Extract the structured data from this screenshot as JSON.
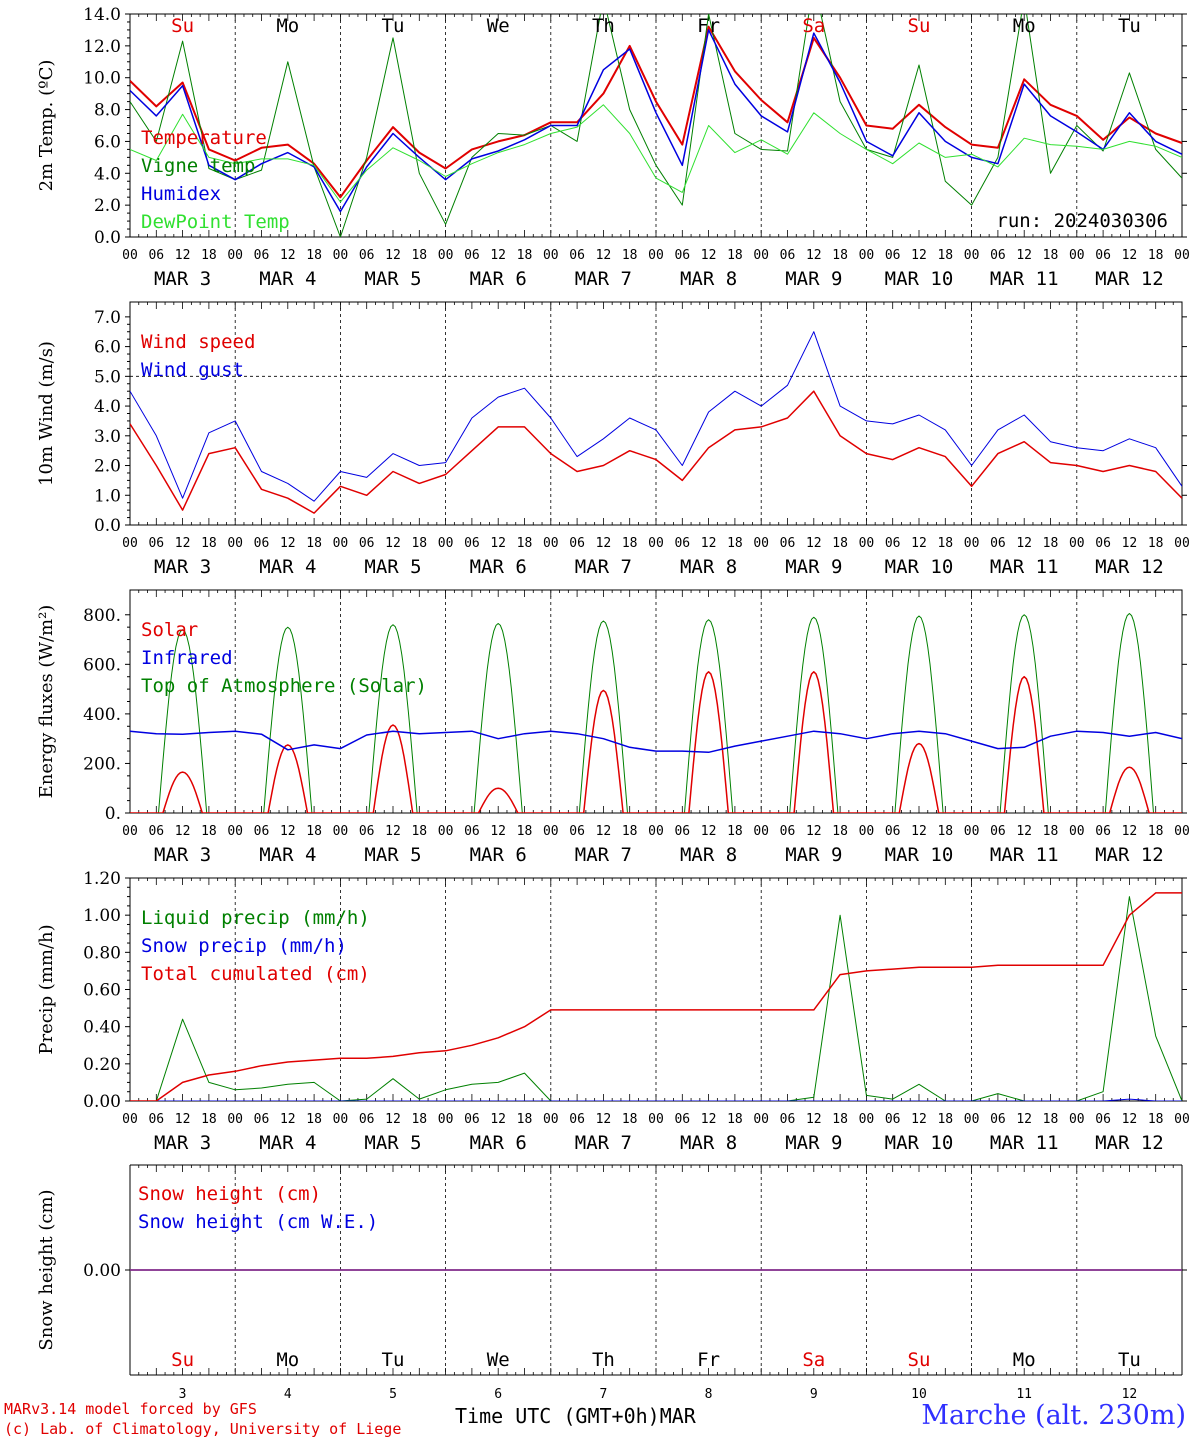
{
  "footer": {
    "model": "MARv3.14 model forced by GFS",
    "lab": "(c) Lab. of Climatology, University of Liege",
    "xlabel": "Time UTC (GMT+0h)",
    "month": "MAR",
    "station": "Marche (alt. 230m)"
  },
  "time_axis": {
    "hour_labels": [
      "00",
      "06",
      "12",
      "18"
    ],
    "dates": [
      "MAR  3",
      "MAR  4",
      "MAR  5",
      "MAR  6",
      "MAR  7",
      "MAR  8",
      "MAR  9",
      "MAR 10",
      "MAR 11",
      "MAR 12"
    ],
    "day_numbers": [
      "3",
      "4",
      "5",
      "6",
      "7",
      "8",
      "9",
      "10",
      "11",
      "12"
    ],
    "days": [
      "Su",
      "Mo",
      "Tu",
      "We",
      "Th",
      "Fr",
      "Sa",
      "Su",
      "Mo",
      "Tu"
    ],
    "weekend_days": [
      0,
      6,
      7
    ],
    "colors": {
      "weekend": "#e00000",
      "weekday": "#000000"
    }
  },
  "chart_data": [
    {
      "id": "temp",
      "type": "line",
      "ylabel": "2m Temp. (ºC)",
      "ylim": [
        0,
        14
      ],
      "yticks": [
        0,
        2,
        4,
        6,
        8,
        10,
        12,
        14
      ],
      "ytick_labels": [
        "0.0",
        "2.0",
        "4.0",
        "6.0",
        "8.0",
        "10.0",
        "12.0",
        "14.0"
      ],
      "annotation": "run: 2024030306",
      "x_hours": [
        0,
        6,
        12,
        18,
        24,
        30,
        36,
        42,
        48,
        54,
        60,
        66,
        72,
        78,
        84,
        90,
        96,
        102,
        108,
        114,
        120,
        126,
        132,
        138,
        144,
        150,
        156,
        162,
        168,
        174,
        180,
        186,
        192,
        198,
        204,
        210,
        216,
        222,
        228,
        234,
        240
      ],
      "series": [
        {
          "name": "Temperature",
          "color": "#e00000",
          "width": 2,
          "values": [
            9.8,
            8.2,
            9.7,
            5.5,
            4.8,
            5.6,
            5.8,
            4.6,
            2.5,
            4.8,
            6.9,
            5.3,
            4.3,
            5.5,
            6.0,
            6.4,
            7.2,
            7.2,
            9.0,
            12.0,
            8.5,
            5.8,
            13.2,
            10.4,
            8.6,
            7.2,
            12.5,
            10.0,
            7.0,
            6.8,
            8.3,
            6.9,
            5.8,
            5.6,
            9.9,
            8.3,
            7.6,
            6.1,
            7.5,
            6.5,
            5.9
          ]
        },
        {
          "name": "Vigne temp",
          "color": "#008000",
          "width": 1,
          "values": [
            8.5,
            6.0,
            12.3,
            4.3,
            3.6,
            4.2,
            11.0,
            4.4,
            0.0,
            5.0,
            12.5,
            4.0,
            0.8,
            5.0,
            6.5,
            6.4,
            7.0,
            6.0,
            15.0,
            8.0,
            4.5,
            2.0,
            14.0,
            6.5,
            5.5,
            5.4,
            16.0,
            8.5,
            5.5,
            5.0,
            10.8,
            3.5,
            2.0,
            5.0,
            15.0,
            4.0,
            7.0,
            5.4,
            10.3,
            5.5,
            3.7
          ]
        },
        {
          "name": "Humidex",
          "color": "#0000e0",
          "width": 1.5,
          "values": [
            9.2,
            7.6,
            9.5,
            4.5,
            3.6,
            4.6,
            5.3,
            4.4,
            1.6,
            4.4,
            6.5,
            5.0,
            3.6,
            4.9,
            5.4,
            6.1,
            7.0,
            7.0,
            10.5,
            11.8,
            7.8,
            4.5,
            13.0,
            9.6,
            7.6,
            6.6,
            12.8,
            9.7,
            6.0,
            5.1,
            7.8,
            6.0,
            5.0,
            4.6,
            9.6,
            7.6,
            6.6,
            5.5,
            7.8,
            6.0,
            5.2
          ]
        },
        {
          "name": "DewPoint Temp",
          "color": "#30e030",
          "width": 1,
          "values": [
            5.5,
            4.8,
            7.7,
            5.0,
            4.6,
            4.9,
            4.9,
            4.5,
            2.2,
            4.2,
            5.6,
            4.8,
            3.8,
            4.6,
            5.3,
            5.8,
            6.5,
            6.9,
            8.3,
            6.5,
            3.7,
            2.8,
            7.0,
            5.3,
            6.1,
            5.2,
            7.8,
            6.5,
            5.5,
            4.6,
            5.9,
            5.0,
            5.2,
            4.4,
            6.2,
            5.8,
            5.7,
            5.5,
            6.0,
            5.7,
            5.0
          ]
        }
      ]
    },
    {
      "id": "wind",
      "type": "line",
      "ylabel": "10m Wind (m/s)",
      "ylim": [
        0,
        7.5
      ],
      "yticks": [
        0,
        1,
        2,
        3,
        4,
        5,
        6,
        7
      ],
      "ytick_labels": [
        "0.0",
        "1.0",
        "2.0",
        "3.0",
        "4.0",
        "5.0",
        "6.0",
        "7.0"
      ],
      "ref_line": 5.0,
      "x_hours": [
        0,
        6,
        12,
        18,
        24,
        30,
        36,
        42,
        48,
        54,
        60,
        66,
        72,
        78,
        84,
        90,
        96,
        102,
        108,
        114,
        120,
        126,
        132,
        138,
        144,
        150,
        156,
        162,
        168,
        174,
        180,
        186,
        192,
        198,
        204,
        210,
        216,
        222,
        228,
        234,
        240
      ],
      "series": [
        {
          "name": "Wind speed",
          "color": "#e00000",
          "width": 1.5,
          "values": [
            3.4,
            2.0,
            0.5,
            2.4,
            2.6,
            1.2,
            0.9,
            0.4,
            1.3,
            1.0,
            1.8,
            1.4,
            1.7,
            2.5,
            3.3,
            3.3,
            2.4,
            1.8,
            2.0,
            2.5,
            2.2,
            1.5,
            2.6,
            3.2,
            3.3,
            3.6,
            4.5,
            3.0,
            2.4,
            2.2,
            2.6,
            2.3,
            1.3,
            2.4,
            2.8,
            2.1,
            2.0,
            1.8,
            2.0,
            1.8,
            0.9
          ]
        },
        {
          "name": "Wind gust",
          "color": "#0000e0",
          "width": 1,
          "values": [
            4.5,
            3.0,
            0.9,
            3.1,
            3.5,
            1.8,
            1.4,
            0.8,
            1.8,
            1.6,
            2.4,
            2.0,
            2.1,
            3.6,
            4.3,
            4.6,
            3.6,
            2.3,
            2.9,
            3.6,
            3.2,
            2.0,
            3.8,
            4.5,
            4.0,
            4.7,
            6.5,
            4.0,
            3.5,
            3.4,
            3.7,
            3.2,
            2.0,
            3.2,
            3.7,
            2.8,
            2.6,
            2.5,
            2.9,
            2.6,
            1.3
          ]
        }
      ]
    },
    {
      "id": "energy",
      "type": "line",
      "ylabel": "Energy fluxes (W/m²)",
      "ylim": [
        0,
        900
      ],
      "yticks": [
        0,
        200,
        400,
        600,
        800
      ],
      "ytick_labels": [
        "0.",
        "200.",
        "400.",
        "600.",
        "800."
      ],
      "toa_peaks": [
        740,
        750,
        760,
        765,
        775,
        780,
        790,
        795,
        800,
        805
      ],
      "solar_peaks": [
        165,
        275,
        355,
        100,
        495,
        570,
        570,
        280,
        550,
        185
      ],
      "infrared_values": [
        330,
        320,
        318,
        325,
        330,
        318,
        255,
        275,
        260,
        315,
        330,
        320,
        325,
        330,
        300,
        320,
        330,
        320,
        300,
        265,
        250,
        250,
        245,
        270,
        290,
        310,
        330,
        320,
        300,
        320,
        330,
        320,
        290,
        260,
        265,
        310,
        330,
        325,
        310,
        325,
        300
      ],
      "series": [
        {
          "name": "Solar",
          "color": "#e00000",
          "width": 1.5
        },
        {
          "name": "Infrared",
          "color": "#0000e0",
          "width": 1.5
        },
        {
          "name": "Top of Atmosphere (Solar)",
          "color": "#008000",
          "width": 1
        }
      ]
    },
    {
      "id": "precip",
      "type": "line",
      "ylabel": "Precip (mm/h)",
      "ylim": [
        0,
        1.2
      ],
      "yticks": [
        0,
        0.2,
        0.4,
        0.6,
        0.8,
        1.0,
        1.2
      ],
      "ytick_labels": [
        "0.00",
        "0.20",
        "0.40",
        "0.60",
        "0.80",
        "1.00",
        "1.20"
      ],
      "x_hours": [
        0,
        6,
        12,
        18,
        24,
        30,
        36,
        42,
        48,
        54,
        60,
        66,
        72,
        78,
        84,
        90,
        96,
        102,
        108,
        114,
        120,
        126,
        132,
        138,
        144,
        150,
        156,
        162,
        168,
        174,
        180,
        186,
        192,
        198,
        204,
        210,
        216,
        222,
        228,
        234,
        240
      ],
      "series": [
        {
          "name": "Liquid precip (mm/h)",
          "color": "#008000",
          "width": 1,
          "values": [
            0,
            0,
            0.44,
            0.1,
            0.06,
            0.07,
            0.09,
            0.1,
            0,
            0.01,
            0.12,
            0.01,
            0.06,
            0.09,
            0.1,
            0.15,
            0.0,
            0,
            0,
            0,
            0,
            0,
            0,
            0,
            0,
            0,
            0.02,
            1.0,
            0.03,
            0.01,
            0.09,
            0.0,
            0,
            0.04,
            0.0,
            0,
            0.0,
            0.05,
            1.1,
            0.35,
            0
          ]
        },
        {
          "name": "Snow precip (mm/h)",
          "color": "#0000e0",
          "width": 1,
          "values": [
            0,
            0,
            0,
            0,
            0,
            0,
            0,
            0,
            0,
            0,
            0,
            0,
            0,
            0,
            0,
            0,
            0,
            0,
            0,
            0,
            0,
            0,
            0,
            0,
            0,
            0,
            0,
            0,
            0,
            0,
            0,
            0,
            0,
            0,
            0,
            0,
            0,
            0,
            0.01,
            0,
            0
          ]
        },
        {
          "name": "Total cumulated (cm)",
          "color": "#e00000",
          "width": 1.5,
          "values": [
            0,
            0,
            0.1,
            0.14,
            0.16,
            0.19,
            0.21,
            0.22,
            0.23,
            0.23,
            0.24,
            0.26,
            0.27,
            0.3,
            0.34,
            0.4,
            0.49,
            0.49,
            0.49,
            0.49,
            0.49,
            0.49,
            0.49,
            0.49,
            0.49,
            0.49,
            0.49,
            0.68,
            0.7,
            0.71,
            0.72,
            0.72,
            0.72,
            0.73,
            0.73,
            0.73,
            0.73,
            0.73,
            1.0,
            1.12,
            1.12
          ]
        }
      ]
    },
    {
      "id": "snow",
      "type": "line",
      "ylabel": "Snow height (cm)",
      "ylim": [
        -1,
        1
      ],
      "yticks": [
        0
      ],
      "ytick_labels": [
        "0.00"
      ],
      "series": [
        {
          "name": "Snow height (cm)",
          "color": "#e00000",
          "width": 1.5,
          "values": [
            0,
            0
          ]
        },
        {
          "name": "Snow height (cm W.E.)",
          "color": "#0000e0",
          "width": 1.5,
          "values": [
            0,
            0
          ]
        }
      ]
    }
  ]
}
